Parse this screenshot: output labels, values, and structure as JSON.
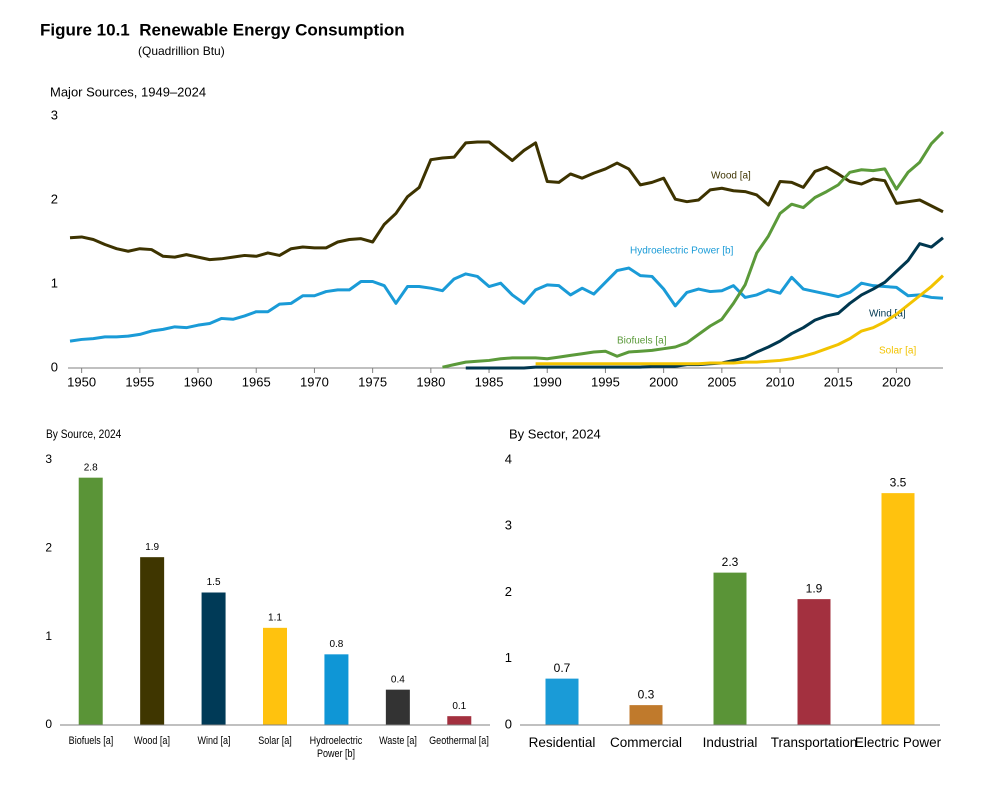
{
  "header": {
    "title": "Figure 10.1  Renewable Energy Consumption",
    "subtitle": "(Quadrillion Btu)"
  },
  "chart_data": [
    {
      "type": "line",
      "title": "Major Sources, 1949–2024",
      "x": [
        1949,
        1950,
        1951,
        1952,
        1953,
        1954,
        1955,
        1956,
        1957,
        1958,
        1959,
        1960,
        1961,
        1962,
        1963,
        1964,
        1965,
        1966,
        1967,
        1968,
        1969,
        1970,
        1971,
        1972,
        1973,
        1974,
        1975,
        1976,
        1977,
        1978,
        1979,
        1980,
        1981,
        1982,
        1983,
        1984,
        1985,
        1986,
        1987,
        1988,
        1989,
        1990,
        1991,
        1992,
        1993,
        1994,
        1995,
        1996,
        1997,
        1998,
        1999,
        2000,
        2001,
        2002,
        2003,
        2004,
        2005,
        2006,
        2007,
        2008,
        2009,
        2010,
        2011,
        2012,
        2013,
        2014,
        2015,
        2016,
        2017,
        2018,
        2019,
        2020,
        2021,
        2022,
        2023,
        2024
      ],
      "xlim": [
        1949,
        2024
      ],
      "xticks": [
        1950,
        1955,
        1960,
        1965,
        1970,
        1975,
        1980,
        1985,
        1990,
        1995,
        2000,
        2005,
        2010,
        2015,
        2020
      ],
      "ylim": [
        0,
        3
      ],
      "yticks": [
        0,
        1,
        2,
        3
      ],
      "grid": false,
      "series": [
        {
          "name": "Wood [a]",
          "color": "#3d3300",
          "values": [
            1.55,
            1.56,
            1.53,
            1.47,
            1.42,
            1.39,
            1.42,
            1.41,
            1.33,
            1.32,
            1.35,
            1.32,
            1.29,
            1.3,
            1.32,
            1.34,
            1.33,
            1.37,
            1.34,
            1.42,
            1.44,
            1.43,
            1.43,
            1.5,
            1.53,
            1.54,
            1.5,
            1.71,
            1.84,
            2.04,
            2.15,
            2.48,
            2.5,
            2.51,
            2.68,
            2.69,
            2.69,
            2.58,
            2.47,
            2.59,
            2.68,
            2.22,
            2.21,
            2.31,
            2.26,
            2.32,
            2.37,
            2.44,
            2.37,
            2.18,
            2.21,
            2.26,
            2.01,
            1.98,
            2.0,
            2.12,
            2.14,
            2.11,
            2.1,
            2.06,
            1.94,
            2.22,
            2.21,
            2.15,
            2.34,
            2.39,
            2.31,
            2.22,
            2.19,
            2.25,
            2.23,
            1.96,
            1.98,
            2.0,
            1.93,
            1.86
          ]
        },
        {
          "name": "Hydroelectric Power [b]",
          "color": "#1a9bd7",
          "values": [
            0.32,
            0.34,
            0.35,
            0.37,
            0.37,
            0.38,
            0.4,
            0.44,
            0.46,
            0.49,
            0.48,
            0.51,
            0.53,
            0.59,
            0.58,
            0.62,
            0.67,
            0.67,
            0.76,
            0.77,
            0.86,
            0.86,
            0.91,
            0.93,
            0.93,
            1.03,
            1.03,
            0.98,
            0.77,
            0.97,
            0.97,
            0.95,
            0.92,
            1.06,
            1.12,
            1.09,
            0.97,
            1.01,
            0.87,
            0.77,
            0.93,
            0.99,
            0.98,
            0.87,
            0.95,
            0.88,
            1.02,
            1.16,
            1.19,
            1.1,
            1.09,
            0.94,
            0.74,
            0.9,
            0.94,
            0.91,
            0.92,
            0.98,
            0.84,
            0.87,
            0.93,
            0.89,
            1.08,
            0.94,
            0.91,
            0.88,
            0.85,
            0.9,
            1.01,
            0.98,
            0.97,
            0.96,
            0.86,
            0.87,
            0.84,
            0.83
          ]
        },
        {
          "name": "Biofuels [a]",
          "color": "#5b9a3a",
          "values": [
            null,
            null,
            null,
            null,
            null,
            null,
            null,
            null,
            null,
            null,
            null,
            null,
            null,
            null,
            null,
            null,
            null,
            null,
            null,
            null,
            null,
            null,
            null,
            null,
            null,
            null,
            null,
            null,
            null,
            null,
            null,
            null,
            0.01,
            0.04,
            0.07,
            0.08,
            0.09,
            0.11,
            0.12,
            0.12,
            0.12,
            0.11,
            0.13,
            0.15,
            0.17,
            0.19,
            0.2,
            0.14,
            0.19,
            0.2,
            0.21,
            0.23,
            0.25,
            0.3,
            0.4,
            0.5,
            0.58,
            0.77,
            0.99,
            1.37,
            1.57,
            1.84,
            1.95,
            1.91,
            2.03,
            2.1,
            2.18,
            2.33,
            2.36,
            2.35,
            2.37,
            2.13,
            2.33,
            2.45,
            2.67,
            2.81
          ]
        },
        {
          "name": "Wind [a]",
          "color": "#00374f",
          "values": [
            null,
            null,
            null,
            null,
            null,
            null,
            null,
            null,
            null,
            null,
            null,
            null,
            null,
            null,
            null,
            null,
            null,
            null,
            null,
            null,
            null,
            null,
            null,
            null,
            null,
            null,
            null,
            null,
            null,
            null,
            null,
            null,
            null,
            null,
            0,
            0,
            0,
            0,
            0,
            0,
            0.01,
            0.01,
            0.01,
            0.01,
            0.01,
            0.01,
            0.01,
            0.01,
            0.01,
            0.01,
            0.02,
            0.02,
            0.02,
            0.04,
            0.04,
            0.05,
            0.06,
            0.09,
            0.12,
            0.19,
            0.25,
            0.32,
            0.41,
            0.48,
            0.57,
            0.62,
            0.65,
            0.77,
            0.87,
            0.94,
            1.02,
            1.15,
            1.28,
            1.48,
            1.44,
            1.55
          ]
        },
        {
          "name": "Solar [a]",
          "color": "#f2c300",
          "values": [
            null,
            null,
            null,
            null,
            null,
            null,
            null,
            null,
            null,
            null,
            null,
            null,
            null,
            null,
            null,
            null,
            null,
            null,
            null,
            null,
            null,
            null,
            null,
            null,
            null,
            null,
            null,
            null,
            null,
            null,
            null,
            null,
            null,
            null,
            null,
            null,
            null,
            null,
            null,
            null,
            0.05,
            0.05,
            0.05,
            0.05,
            0.05,
            0.05,
            0.05,
            0.05,
            0.05,
            0.05,
            0.05,
            0.05,
            0.05,
            0.05,
            0.05,
            0.06,
            0.06,
            0.06,
            0.07,
            0.07,
            0.08,
            0.09,
            0.11,
            0.14,
            0.18,
            0.23,
            0.28,
            0.35,
            0.44,
            0.48,
            0.55,
            0.64,
            0.75,
            0.86,
            0.97,
            1.1
          ]
        }
      ]
    },
    {
      "type": "bar",
      "title": "By Source, 2024",
      "categories": [
        "Biofuels [a]",
        "Wood [a]",
        "Wind [a]",
        "Solar [a]",
        "Hydroelectric Power [b]",
        "Waste [a]",
        "Geothermal [a]"
      ],
      "values": [
        2.8,
        1.9,
        1.5,
        1.1,
        0.8,
        0.4,
        0.1
      ],
      "colors": [
        "#5a9437",
        "#3f3600",
        "#003a57",
        "#ffc20e",
        "#0f96d6",
        "#333333",
        "#a3303f"
      ],
      "ylim": [
        0,
        3
      ],
      "yticks": [
        0,
        1,
        2,
        3
      ],
      "grid": false
    },
    {
      "type": "bar",
      "title": "By Sector, 2024",
      "categories": [
        "Residential",
        "Commercial",
        "Industrial",
        "Transportation",
        "Electric Power"
      ],
      "values": [
        0.7,
        0.3,
        2.3,
        1.9,
        3.5
      ],
      "colors": [
        "#1a9bd7",
        "#c07a2c",
        "#5a9437",
        "#a3303f",
        "#ffc20e"
      ],
      "ylim": [
        0,
        4
      ],
      "yticks": [
        0,
        1,
        2,
        3,
        4
      ],
      "grid": false
    }
  ]
}
